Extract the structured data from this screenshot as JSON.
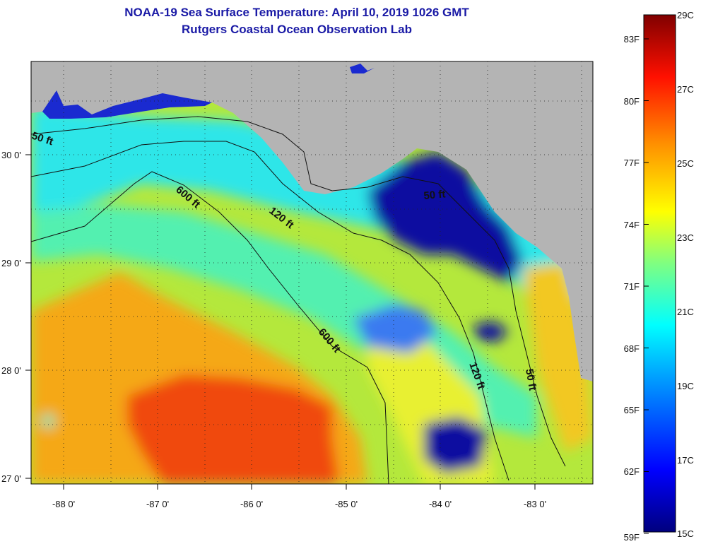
{
  "header": {
    "title": "NOAA-19 Sea Surface Temperature:  April 10, 2019 1026 GMT",
    "subtitle": "Rutgers Coastal Ocean Observation Lab"
  },
  "map": {
    "lon_labels": [
      "-88 0'",
      "-87 0'",
      "-86 0'",
      "-85 0'",
      "-84 0'",
      "-83 0'"
    ],
    "lat_labels": [
      "30 0'",
      "29 0'",
      "28 0'",
      "27 0'"
    ],
    "contours": [
      {
        "id": "c50w",
        "label": "50 ft"
      },
      {
        "id": "c600a",
        "label": "600 ft"
      },
      {
        "id": "c120a",
        "label": "120 ft"
      },
      {
        "id": "c50b",
        "label": "50 ft"
      },
      {
        "id": "c600b",
        "label": "600 ft"
      },
      {
        "id": "c120b",
        "label": "120 ft"
      },
      {
        "id": "c50c",
        "label": "50 ft"
      }
    ],
    "colors": {
      "land": "#b4b4b4",
      "cold": "#0a0f9e",
      "cool": "#18e6f0",
      "mid": "#c8ee30",
      "warm": "#f7a514",
      "hot": "#f03c0a"
    }
  },
  "colorbar": {
    "fahrenheit": [
      "83F",
      "80F",
      "77F",
      "74F",
      "71F",
      "68F",
      "65F",
      "62F",
      "59F"
    ],
    "celsius": [
      "29C",
      "27C",
      "25C",
      "23C",
      "21C",
      "19C",
      "17C",
      "15C"
    ]
  }
}
